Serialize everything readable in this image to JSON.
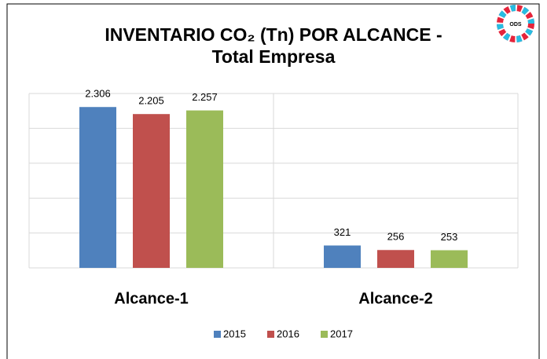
{
  "chart_data": {
    "type": "bar",
    "title": [
      "INVENTARIO CO₂ (Tn) POR ALCANCE -",
      "Total Empresa"
    ],
    "logo_text": "ODS",
    "categories": [
      "Alcance-1",
      "Alcance-2"
    ],
    "series": [
      {
        "name": "2015",
        "color": "#4f81bd",
        "values": [
          2306,
          321
        ],
        "value_labels": [
          "2.306",
          "321"
        ]
      },
      {
        "name": "2016",
        "color": "#c0504d",
        "values": [
          2205,
          256
        ],
        "value_labels": [
          "2.205",
          "256"
        ]
      },
      {
        "name": "2017",
        "color": "#9bbb59",
        "values": [
          2257,
          253
        ],
        "value_labels": [
          "2.257",
          "253"
        ]
      }
    ],
    "ylim": [
      0,
      2500
    ],
    "yticks": [
      0,
      500,
      1000,
      1500,
      2000,
      2500
    ],
    "grid": true,
    "legend": "bottom"
  }
}
